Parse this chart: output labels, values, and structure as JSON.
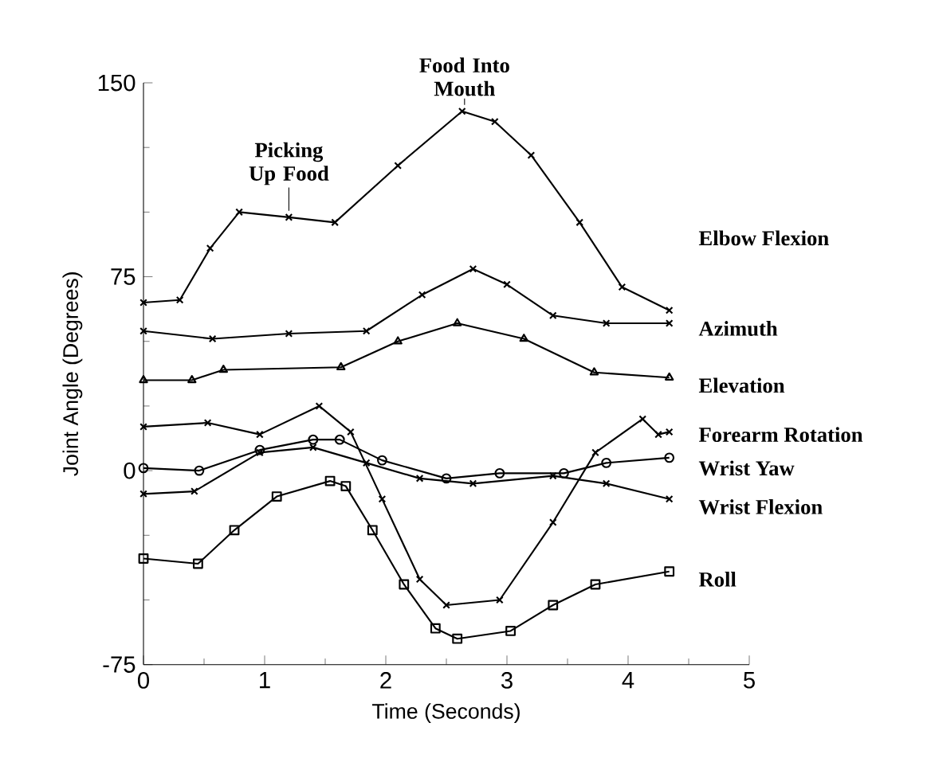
{
  "chart_data": {
    "type": "line",
    "xlabel": "Time (Seconds)",
    "ylabel": "Joint Angle (Degrees)",
    "xlim": [
      0,
      5
    ],
    "ylim": [
      -75,
      150
    ],
    "xticks": [
      0,
      1,
      2,
      3,
      4,
      5
    ],
    "yticks": [
      -75,
      0,
      75,
      150
    ],
    "legend": false,
    "grid": false,
    "annotations": [
      {
        "text": "Picking Up Food",
        "x": 1.2,
        "y": 98
      },
      {
        "text": "Food Into Mouth",
        "x": 2.65,
        "y": 139
      }
    ],
    "series": [
      {
        "name": "Elbow Flexion",
        "color": "#000000",
        "marker": "cross",
        "x": [
          0,
          0.3,
          0.55,
          0.79,
          1.2,
          1.58,
          2.1,
          2.63,
          2.9,
          3.2,
          3.6,
          3.95,
          4.34
        ],
        "values": [
          65,
          66,
          86,
          100,
          98,
          96,
          118,
          139,
          135,
          122,
          96,
          71,
          62
        ]
      },
      {
        "name": "Azimuth",
        "color": "#000000",
        "marker": "cross",
        "x": [
          0,
          0.57,
          1.2,
          1.84,
          2.3,
          2.72,
          3.0,
          3.38,
          3.82,
          4.34
        ],
        "values": [
          54,
          51,
          53,
          54,
          68,
          78,
          72,
          60,
          57,
          57
        ]
      },
      {
        "name": "Elevation",
        "color": "#000000",
        "marker": "triangle",
        "x": [
          0,
          0.4,
          0.66,
          1.63,
          2.1,
          2.59,
          3.14,
          3.72,
          4.34
        ],
        "values": [
          35,
          35,
          39,
          40,
          50,
          57,
          51,
          38,
          36
        ]
      },
      {
        "name": "Forearm Rotation",
        "color": "#000000",
        "marker": "cross",
        "x": [
          0,
          0.53,
          0.96,
          1.45,
          1.71,
          1.97,
          2.28,
          2.5,
          2.94,
          3.38,
          3.73,
          4.12,
          4.25,
          4.34
        ],
        "values": [
          17,
          18.5,
          14,
          25,
          15,
          -11,
          -42,
          -52,
          -50,
          -20,
          7,
          20,
          14,
          15
        ]
      },
      {
        "name": "Wrist Yaw",
        "color": "#000000",
        "marker": "circle",
        "x": [
          0,
          0.46,
          0.96,
          1.4,
          1.62,
          1.97,
          2.5,
          2.94,
          3.47,
          3.82,
          4.34
        ],
        "values": [
          1,
          0,
          8,
          12,
          12,
          4,
          -3,
          -1,
          -1,
          3,
          5
        ]
      },
      {
        "name": "Wrist Flexion",
        "color": "#000000",
        "marker": "cross",
        "x": [
          0,
          0.42,
          0.96,
          1.4,
          1.84,
          2.28,
          2.72,
          3.38,
          3.82,
          4.34
        ],
        "values": [
          -9,
          -8,
          7,
          9,
          3,
          -3,
          -5,
          -2,
          -5,
          -11
        ]
      },
      {
        "name": "Roll",
        "color": "#000000",
        "marker": "square",
        "x": [
          0,
          0.45,
          0.75,
          1.1,
          1.54,
          1.67,
          1.89,
          2.15,
          2.41,
          2.59,
          3.03,
          3.38,
          3.73,
          4.34
        ],
        "values": [
          -34,
          -36,
          -23,
          -10,
          -4,
          -6,
          -23,
          -44,
          -61,
          -65,
          -62,
          -52,
          -44,
          -39
        ]
      }
    ]
  }
}
